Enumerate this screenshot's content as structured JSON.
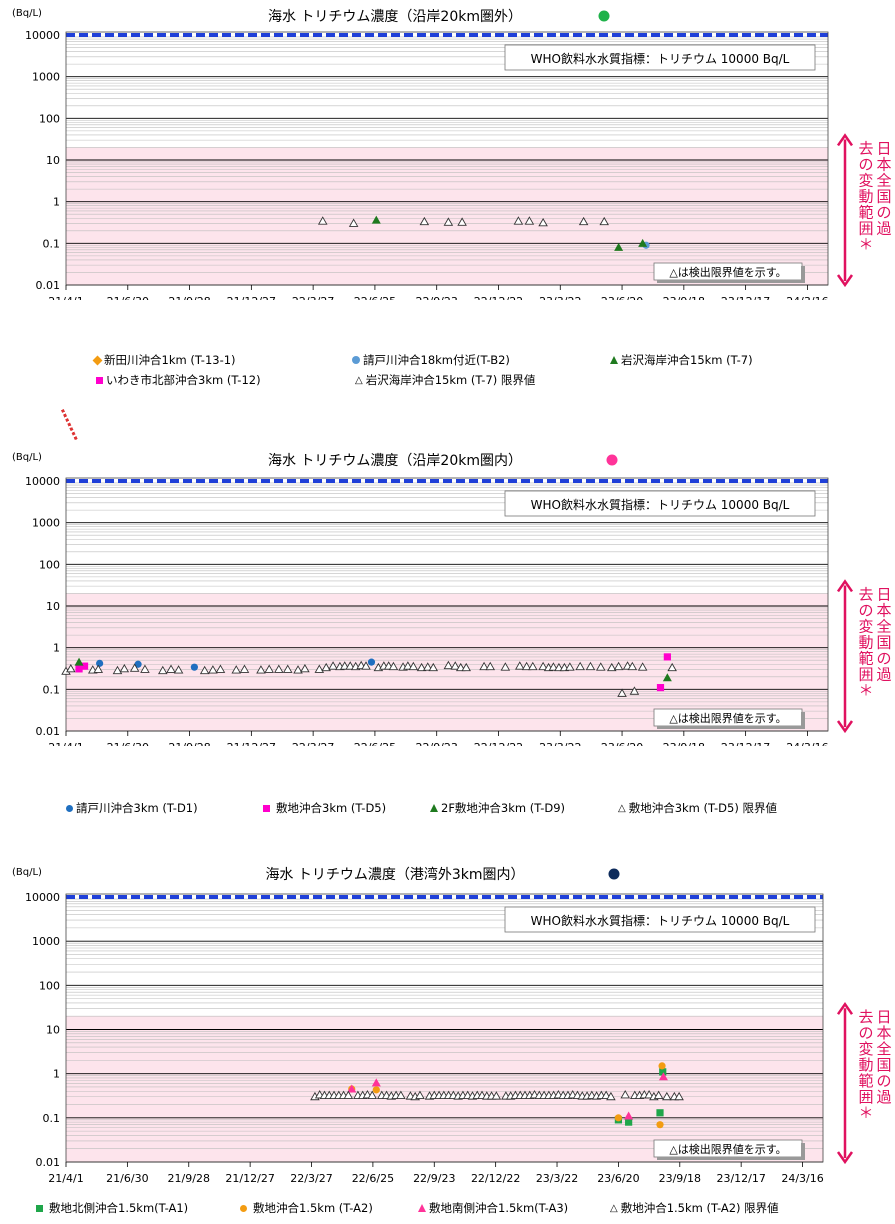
{
  "chart_data": [
    {
      "type": "scatter",
      "title": "海水 トリチウム濃度（沿岸20km圏外）",
      "title_dot_color": "#1fb24a",
      "unit_label": "(Bq/L)",
      "y_scale": "log",
      "ylim": [
        0.01,
        10000
      ],
      "yticks": [
        "10000",
        "1000",
        "100",
        "10",
        "1",
        "0.1",
        "0.01"
      ],
      "xlim": [
        "2021-04-01",
        "2024-04-15"
      ],
      "xticks": [
        "21/4/1",
        "21/6/30",
        "21/9/28",
        "21/12/27",
        "22/3/27",
        "22/6/25",
        "22/9/23",
        "22/12/22",
        "23/3/22",
        "23/6/20",
        "23/9/18",
        "23/12/17",
        "24/3/16"
      ],
      "who_label": "WHO飲料水水質指標：トリチウム 10000 Bq/L",
      "detection_note": "△は検出限界値を示す。",
      "band_label": "日本全国の過去の変動範囲＊",
      "pink_band": [
        0.01,
        20
      ],
      "grid": true,
      "series": [
        {
          "name": "新田川沖合1km (T-13-1)",
          "marker": "diamond",
          "color": "#f39c12",
          "points": []
        },
        {
          "name": "請戸川沖合18km付近(T-B2)",
          "marker": "circle",
          "color": "#5b9bd5",
          "points": [
            [
              "2023-07-25",
              0.09
            ]
          ]
        },
        {
          "name": "岩沢海岸沖合15km (T-7)",
          "marker": "triangle",
          "color": "#1f7a1f",
          "points": [
            [
              "2022-06-27",
              0.36
            ],
            [
              "2023-06-15",
              0.08
            ],
            [
              "2023-07-20",
              0.1
            ]
          ]
        },
        {
          "name": "いわき市北部沖合3km (T-12)",
          "marker": "square",
          "color": "#ff00cc",
          "points": []
        },
        {
          "name": "岩沢海岸沖合15km (T-7) 限界値",
          "marker": "open-triangle",
          "color": "#333333",
          "points": [
            [
              "2022-04-10",
              0.34
            ],
            [
              "2022-05-25",
              0.3
            ],
            [
              "2022-09-05",
              0.33
            ],
            [
              "2022-10-10",
              0.32
            ],
            [
              "2022-10-30",
              0.32
            ],
            [
              "2023-01-20",
              0.34
            ],
            [
              "2023-02-05",
              0.34
            ],
            [
              "2023-02-25",
              0.31
            ],
            [
              "2023-04-25",
              0.33
            ],
            [
              "2023-05-25",
              0.33
            ]
          ]
        }
      ],
      "legend_rows": [
        [
          "新田川沖合1km (T-13-1)",
          "請戸川沖合18km付近(T-B2)",
          "岩沢海岸沖合15km (T-7)"
        ],
        [
          "いわき市北部沖合3km (T-12)",
          "岩沢海岸沖合15km (T-7) 限界値"
        ]
      ]
    },
    {
      "type": "scatter",
      "title": "海水 トリチウム濃度（沿岸20km圏内）",
      "title_dot_color": "#ff3399",
      "unit_label": "(Bq/L)",
      "y_scale": "log",
      "ylim": [
        0.01,
        10000
      ],
      "yticks": [
        "10000",
        "1000",
        "100",
        "10",
        "1",
        "0.1",
        "0.01"
      ],
      "xlim": [
        "2021-04-01",
        "2024-04-15"
      ],
      "xticks": [
        "21/4/1",
        "21/6/30",
        "21/9/28",
        "21/12/27",
        "22/3/27",
        "22/6/25",
        "22/9/23",
        "22/12/22",
        "23/3/22",
        "23/6/20",
        "23/9/18",
        "23/12/17",
        "24/3/16"
      ],
      "who_label": "WHO飲料水水質指標：トリチウム 10000 Bq/L",
      "detection_note": "△は検出限界値を示す。",
      "band_label": "日本全国の過去の変動範囲＊",
      "pink_band": [
        0.01,
        20
      ],
      "grid": true,
      "series": [
        {
          "name": "請戸川沖合3km (T-D1)",
          "marker": "circle",
          "color": "#1f6fc0",
          "points": [
            [
              "2021-05-20",
              0.42
            ],
            [
              "2021-07-15",
              0.4
            ],
            [
              "2021-10-05",
              0.34
            ],
            [
              "2022-06-20",
              0.45
            ]
          ]
        },
        {
          "name": "敷地沖合3km (T-D5)",
          "marker": "square",
          "color": "#ff00cc",
          "points": [
            [
              "2021-04-20",
              0.31
            ],
            [
              "2021-04-28",
              0.36
            ],
            [
              "2023-08-15",
              0.11
            ],
            [
              "2023-08-25",
              0.6
            ]
          ]
        },
        {
          "name": "2F敷地沖合3km (T-D9)",
          "marker": "triangle",
          "color": "#1f7a1f",
          "points": [
            [
              "2021-04-20",
              0.45
            ],
            [
              "2023-08-25",
              0.19
            ]
          ]
        },
        {
          "name": "敷地沖合3km (T-D5) 限界値",
          "marker": "open-triangle",
          "color": "#333333",
          "points": [
            [
              "2021-04-01",
              0.27
            ],
            [
              "2021-04-08",
              0.31
            ],
            [
              "2021-05-10",
              0.29
            ],
            [
              "2021-05-18",
              0.3
            ],
            [
              "2021-06-15",
              0.28
            ],
            [
              "2021-06-25",
              0.31
            ],
            [
              "2021-07-10",
              0.32
            ],
            [
              "2021-07-25",
              0.3
            ],
            [
              "2021-08-20",
              0.28
            ],
            [
              "2021-09-01",
              0.3
            ],
            [
              "2021-09-12",
              0.29
            ],
            [
              "2021-10-20",
              0.28
            ],
            [
              "2021-11-01",
              0.29
            ],
            [
              "2021-11-12",
              0.3
            ],
            [
              "2021-12-05",
              0.29
            ],
            [
              "2021-12-17",
              0.3
            ],
            [
              "2022-01-10",
              0.29
            ],
            [
              "2022-01-22",
              0.3
            ],
            [
              "2022-02-05",
              0.3
            ],
            [
              "2022-02-18",
              0.3
            ],
            [
              "2022-03-05",
              0.29
            ],
            [
              "2022-03-15",
              0.31
            ],
            [
              "2022-04-05",
              0.3
            ],
            [
              "2022-04-15",
              0.33
            ],
            [
              "2022-04-25",
              0.36
            ],
            [
              "2022-05-05",
              0.35
            ],
            [
              "2022-05-12",
              0.36
            ],
            [
              "2022-05-20",
              0.36
            ],
            [
              "2022-05-28",
              0.35
            ],
            [
              "2022-06-05",
              0.37
            ],
            [
              "2022-06-12",
              0.36
            ],
            [
              "2022-06-30",
              0.33
            ],
            [
              "2022-07-08",
              0.36
            ],
            [
              "2022-07-15",
              0.36
            ],
            [
              "2022-07-22",
              0.35
            ],
            [
              "2022-08-05",
              0.34
            ],
            [
              "2022-08-12",
              0.36
            ],
            [
              "2022-08-20",
              0.35
            ],
            [
              "2022-09-01",
              0.33
            ],
            [
              "2022-09-10",
              0.34
            ],
            [
              "2022-09-18",
              0.33
            ],
            [
              "2022-10-10",
              0.37
            ],
            [
              "2022-10-20",
              0.36
            ],
            [
              "2022-10-28",
              0.33
            ],
            [
              "2022-11-05",
              0.33
            ],
            [
              "2022-12-01",
              0.35
            ],
            [
              "2022-12-10",
              0.35
            ],
            [
              "2023-01-01",
              0.34
            ],
            [
              "2023-01-22",
              0.36
            ],
            [
              "2023-02-01",
              0.35
            ],
            [
              "2023-02-10",
              0.35
            ],
            [
              "2023-02-25",
              0.35
            ],
            [
              "2023-03-05",
              0.33
            ],
            [
              "2023-03-12",
              0.34
            ],
            [
              "2023-03-20",
              0.33
            ],
            [
              "2023-03-28",
              0.33
            ],
            [
              "2023-04-05",
              0.34
            ],
            [
              "2023-04-20",
              0.35
            ],
            [
              "2023-05-05",
              0.35
            ],
            [
              "2023-05-20",
              0.34
            ],
            [
              "2023-06-05",
              0.33
            ],
            [
              "2023-06-15",
              0.35
            ],
            [
              "2023-06-20",
              0.08
            ],
            [
              "2023-06-28",
              0.36
            ],
            [
              "2023-07-05",
              0.35
            ],
            [
              "2023-07-08",
              0.09
            ],
            [
              "2023-07-20",
              0.34
            ],
            [
              "2023-09-01",
              0.33
            ]
          ]
        }
      ],
      "legend_rows": [
        [
          "請戸川沖合3km (T-D1)",
          "敷地沖合3km (T-D5)",
          "2F敷地沖合3km (T-D9)",
          "敷地沖合3km (T-D5) 限界値"
        ]
      ]
    },
    {
      "type": "scatter",
      "title": "海水 トリチウム濃度（港湾外3km圏内）",
      "title_dot_color": "#0d2b5c",
      "unit_label": "(Bq/L)",
      "y_scale": "log",
      "ylim": [
        0.01,
        10000
      ],
      "yticks": [
        "10000",
        "1000",
        "100",
        "10",
        "1",
        "0.1",
        "0.01"
      ],
      "xlim": [
        "2021-04-01",
        "2024-04-15"
      ],
      "xticks": [
        "21/4/1",
        "21/6/30",
        "21/9/28",
        "21/12/27",
        "22/3/27",
        "22/6/25",
        "22/9/23",
        "22/12/22",
        "23/3/22",
        "23/6/20",
        "23/9/18",
        "23/12/17",
        "24/3/16"
      ],
      "who_label": "WHO飲料水水質指標：トリチウム 10000 Bq/L",
      "detection_note": "△は検出限界値を示す。",
      "band_label": "日本全国の過去の変動範囲＊",
      "pink_band": [
        0.01,
        20
      ],
      "grid": true,
      "series": [
        {
          "name": "敷地北側沖合1.5km(T-A1)",
          "marker": "square",
          "color": "#1fa64a",
          "points": [
            [
              "2023-06-20",
              0.09
            ],
            [
              "2023-07-05",
              0.08
            ],
            [
              "2023-08-20",
              0.13
            ],
            [
              "2023-08-24",
              1.1
            ]
          ]
        },
        {
          "name": "敷地沖合1.5km (T-A2)",
          "marker": "circle",
          "color": "#f39c12",
          "points": [
            [
              "2022-05-25",
              0.45
            ],
            [
              "2022-06-30",
              0.43
            ],
            [
              "2023-06-20",
              0.1
            ],
            [
              "2023-08-20",
              0.07
            ],
            [
              "2023-08-23",
              1.5
            ]
          ]
        },
        {
          "name": "敷地南側沖合1.5km(T-A3)",
          "marker": "triangle",
          "color": "#ff3399",
          "points": [
            [
              "2022-05-25",
              0.45
            ],
            [
              "2022-06-30",
              0.62
            ],
            [
              "2023-07-05",
              0.11
            ],
            [
              "2023-08-25",
              0.85
            ]
          ]
        },
        {
          "name": "敷地沖合1.5km (T-A2) 限界値",
          "marker": "open-triangle",
          "color": "#333333",
          "points": [
            [
              "2022-04-01",
              0.3
            ],
            [
              "2022-04-08",
              0.33
            ],
            [
              "2022-04-15",
              0.32
            ],
            [
              "2022-04-22",
              0.32
            ],
            [
              "2022-04-29",
              0.32
            ],
            [
              "2022-05-06",
              0.32
            ],
            [
              "2022-05-13",
              0.32
            ],
            [
              "2022-05-20",
              0.32
            ],
            [
              "2022-06-03",
              0.32
            ],
            [
              "2022-06-10",
              0.32
            ],
            [
              "2022-06-17",
              0.33
            ],
            [
              "2022-06-24",
              0.32
            ],
            [
              "2022-07-08",
              0.32
            ],
            [
              "2022-07-15",
              0.32
            ],
            [
              "2022-07-22",
              0.31
            ],
            [
              "2022-07-29",
              0.32
            ],
            [
              "2022-08-05",
              0.32
            ],
            [
              "2022-08-19",
              0.31
            ],
            [
              "2022-08-26",
              0.3
            ],
            [
              "2022-09-02",
              0.32
            ],
            [
              "2022-09-16",
              0.31
            ],
            [
              "2022-09-23",
              0.32
            ],
            [
              "2022-09-30",
              0.32
            ],
            [
              "2022-10-07",
              0.32
            ],
            [
              "2022-10-14",
              0.32
            ],
            [
              "2022-10-21",
              0.32
            ],
            [
              "2022-10-28",
              0.31
            ],
            [
              "2022-11-04",
              0.32
            ],
            [
              "2022-11-11",
              0.32
            ],
            [
              "2022-11-18",
              0.31
            ],
            [
              "2022-11-25",
              0.32
            ],
            [
              "2022-12-02",
              0.32
            ],
            [
              "2022-12-09",
              0.31
            ],
            [
              "2022-12-16",
              0.31
            ],
            [
              "2022-12-23",
              0.31
            ],
            [
              "2023-01-06",
              0.31
            ],
            [
              "2023-01-13",
              0.31
            ],
            [
              "2023-01-20",
              0.32
            ],
            [
              "2023-01-27",
              0.32
            ],
            [
              "2023-02-03",
              0.32
            ],
            [
              "2023-02-10",
              0.32
            ],
            [
              "2023-02-17",
              0.33
            ],
            [
              "2023-02-24",
              0.32
            ],
            [
              "2023-03-03",
              0.32
            ],
            [
              "2023-03-10",
              0.32
            ],
            [
              "2023-03-17",
              0.32
            ],
            [
              "2023-03-24",
              0.33
            ],
            [
              "2023-03-31",
              0.32
            ],
            [
              "2023-04-07",
              0.32
            ],
            [
              "2023-04-14",
              0.33
            ],
            [
              "2023-04-21",
              0.32
            ],
            [
              "2023-04-28",
              0.31
            ],
            [
              "2023-05-05",
              0.31
            ],
            [
              "2023-05-12",
              0.32
            ],
            [
              "2023-05-19",
              0.31
            ],
            [
              "2023-05-26",
              0.32
            ],
            [
              "2023-06-02",
              0.32
            ],
            [
              "2023-06-09",
              0.3
            ],
            [
              "2023-06-30",
              0.33
            ],
            [
              "2023-07-14",
              0.32
            ],
            [
              "2023-07-21",
              0.32
            ],
            [
              "2023-07-28",
              0.33
            ],
            [
              "2023-08-04",
              0.33
            ],
            [
              "2023-08-11",
              0.3
            ],
            [
              "2023-08-18",
              0.32
            ],
            [
              "2023-08-30",
              0.3
            ],
            [
              "2023-09-10",
              0.3
            ],
            [
              "2023-09-17",
              0.3
            ]
          ]
        }
      ],
      "legend_rows": [
        [
          "敷地北側沖合1.5km(T-A1)",
          "敷地沖合1.5km (T-A2)",
          "敷地南側沖合1.5km(T-A3)",
          "敷地沖合1.5km (T-A2) 限界値"
        ]
      ]
    }
  ]
}
